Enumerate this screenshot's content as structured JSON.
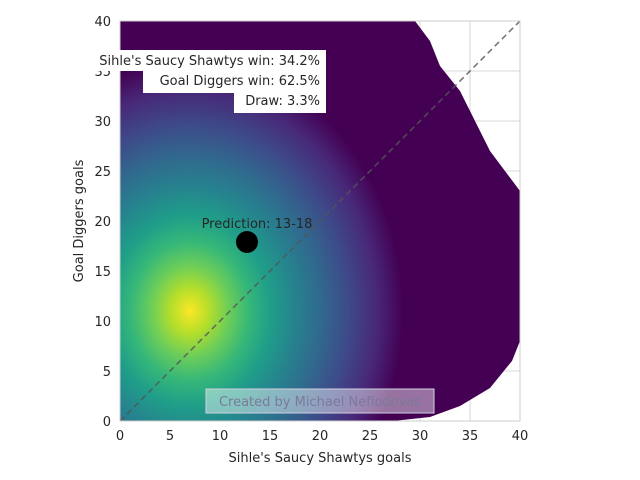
{
  "chart_data": {
    "type": "heatmap",
    "title": "",
    "xlabel": "Sihle's Saucy Shawtys goals",
    "ylabel": "Goal Diggers goals",
    "xlim": [
      0,
      40
    ],
    "ylim": [
      0,
      40
    ],
    "xticks": [
      "0",
      "5",
      "10",
      "15",
      "20",
      "25",
      "30",
      "35",
      "40"
    ],
    "yticks": [
      "0",
      "5",
      "10",
      "15",
      "20",
      "25",
      "30",
      "35",
      "40"
    ],
    "grid": true,
    "colormap": "viridis",
    "density_peak": {
      "x": 7,
      "y": 11
    },
    "density_outline": [
      [
        27.3,
        0
      ],
      [
        31,
        0.4
      ],
      [
        34,
        1.5
      ],
      [
        37,
        3.3
      ],
      [
        39.2,
        6
      ],
      [
        40,
        8
      ],
      [
        40,
        23
      ],
      [
        37,
        27
      ],
      [
        35.5,
        30
      ],
      [
        34,
        33
      ],
      [
        32,
        35.5
      ],
      [
        31,
        38
      ],
      [
        29.5,
        40
      ],
      [
        0,
        40
      ],
      [
        0,
        0
      ]
    ],
    "diagonal": {
      "from": [
        0,
        0
      ],
      "to": [
        40,
        40
      ],
      "style": "dashed",
      "color": "#555555"
    },
    "prediction": {
      "x": 12.7,
      "y": 17.9,
      "label": "Prediction: 13-18"
    },
    "annotations": {
      "team1_win": "Sihle's Saucy Shawtys win: 34.2%",
      "team2_win": "Goal Diggers win: 62.5%",
      "draw": "Draw: 3.3%"
    },
    "watermark": "Created by Michael Nefiodovas"
  }
}
